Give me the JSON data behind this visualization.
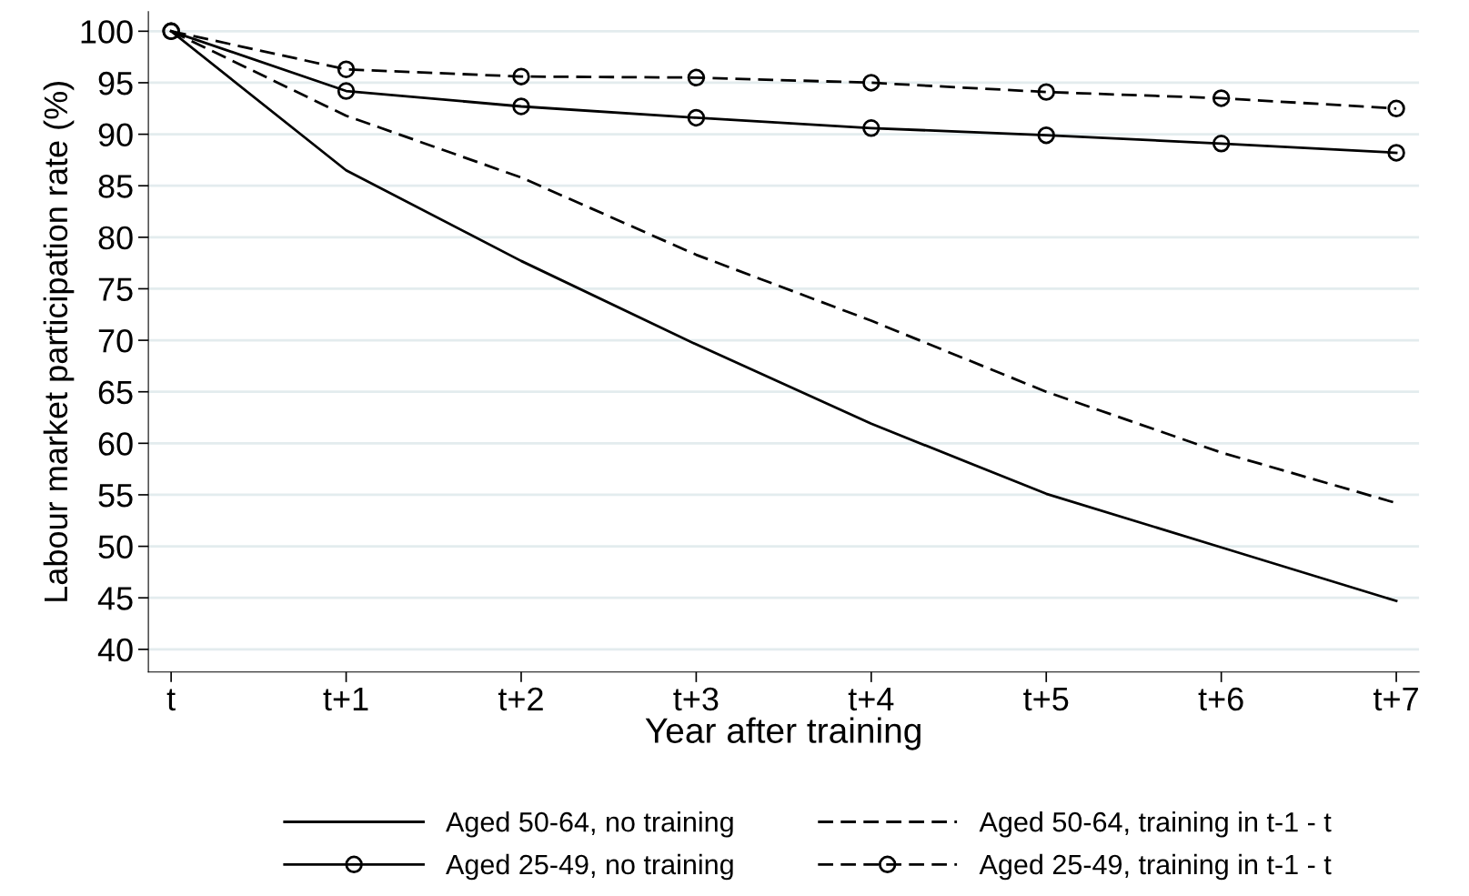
{
  "chart_data": {
    "type": "line",
    "xlabel": "Year after training",
    "ylabel": "Labour market participation rate (%)",
    "categories": [
      "t",
      "t+1",
      "t+2",
      "t+3",
      "t+4",
      "t+5",
      "t+6",
      "t+7"
    ],
    "ylim": [
      37.8,
      101.9
    ],
    "yticks": [
      40,
      45,
      50,
      55,
      60,
      65,
      70,
      75,
      80,
      85,
      90,
      95,
      100
    ],
    "grid": "y",
    "legend": "bottom",
    "series": [
      {
        "name": "Aged 50-64, no training",
        "color": "#000000",
        "line_style": "solid",
        "marker": "none",
        "values": [
          100,
          86.5,
          77.7,
          69.6,
          61.9,
          55.1,
          49.9,
          44.7
        ]
      },
      {
        "name": "Aged 50-64, training in t-1 - t",
        "color": "#000000",
        "line_style": "dashed",
        "marker": "none",
        "values": [
          100,
          91.8,
          85.8,
          78.3,
          71.9,
          65.0,
          59.1,
          54.2
        ]
      },
      {
        "name": "Aged 25-49, no training",
        "color": "#000000",
        "line_style": "solid",
        "marker": "circle",
        "values": [
          100,
          94.2,
          92.7,
          91.6,
          90.6,
          89.9,
          89.1,
          88.2
        ]
      },
      {
        "name": "Aged 25-49, training in t-1 - t",
        "color": "#000000",
        "line_style": "dashed",
        "marker": "circle",
        "values": [
          100,
          96.3,
          95.6,
          95.5,
          95.0,
          94.1,
          93.5,
          92.5
        ]
      }
    ]
  }
}
